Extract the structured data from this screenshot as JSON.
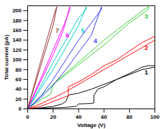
{
  "chart_data": {
    "type": "line",
    "x_label": "Voltage (V)",
    "y_label": "Total current (pA)",
    "xlim": [
      0,
      100
    ],
    "xticks": [
      0,
      20,
      40,
      60,
      80,
      100
    ],
    "ylim": [
      0,
      210
    ],
    "yticks": [
      0,
      20,
      40,
      60,
      80,
      100,
      120,
      140,
      160,
      180,
      200
    ],
    "grid": false,
    "series": [
      {
        "name": "1",
        "color": "#000000",
        "line_style": "solid",
        "x": [
          0,
          10,
          20,
          30,
          38,
          40,
          50,
          52,
          52,
          55,
          60,
          70,
          80,
          90,
          95,
          100,
          100,
          90,
          80,
          70,
          60,
          50,
          40,
          32,
          30,
          27,
          20,
          10,
          0
        ],
        "values": [
          0,
          1,
          2,
          3,
          5,
          10,
          11,
          12,
          27,
          40,
          45,
          60,
          72,
          85,
          88,
          88,
          85,
          80,
          70,
          60,
          50,
          40,
          32,
          28,
          15,
          10,
          5,
          2,
          0
        ]
      },
      {
        "name": "2",
        "color": "#ff0000",
        "line_style": "solid",
        "x": [
          0,
          10,
          20,
          25,
          30,
          32,
          32,
          40,
          50,
          60,
          70,
          80,
          90,
          100,
          100,
          90,
          80,
          70,
          60,
          50,
          40,
          30,
          20,
          10,
          0
        ],
        "values": [
          0,
          5,
          15,
          20,
          25,
          27,
          45,
          55,
          70,
          88,
          100,
          118,
          135,
          148,
          140,
          125,
          110,
          95,
          80,
          65,
          50,
          35,
          22,
          10,
          0
        ]
      },
      {
        "name": "3",
        "color": "#33cc33",
        "line_style": "solid",
        "x": [
          0,
          10,
          18,
          20,
          40,
          60,
          80,
          90,
          95,
          95,
          80,
          60,
          40,
          20,
          10,
          0
        ],
        "values": [
          0,
          18,
          30,
          50,
          95,
          140,
          180,
          200,
          208,
          203,
          175,
          130,
          90,
          50,
          25,
          0
        ]
      },
      {
        "name": "4",
        "color": "#3333ff",
        "line_style": "solid",
        "x": [
          0,
          10,
          20,
          30,
          40,
          50,
          58,
          58,
          50,
          40,
          30,
          20,
          10,
          0
        ],
        "values": [
          0,
          22,
          48,
          80,
          115,
          150,
          208,
          203,
          175,
          140,
          100,
          60,
          25,
          0
        ]
      },
      {
        "name": "5",
        "color": "#00cccc",
        "line_style": "solid",
        "x": [
          0,
          10,
          20,
          30,
          40,
          46,
          46,
          40,
          30,
          20,
          10,
          0
        ],
        "values": [
          0,
          40,
          80,
          125,
          170,
          208,
          203,
          185,
          140,
          95,
          45,
          0
        ]
      },
      {
        "name": "6",
        "color": "#ff00ff",
        "line_style": "solid",
        "x": [
          0,
          10,
          20,
          28,
          33,
          33,
          30,
          20,
          10,
          0
        ],
        "values": [
          0,
          55,
          110,
          160,
          208,
          203,
          180,
          120,
          60,
          0
        ]
      },
      {
        "name": "7",
        "color": "#993333",
        "line_style": "solid",
        "x": [
          0,
          10,
          20,
          23,
          22,
          20,
          10,
          0
        ],
        "values": [
          0,
          85,
          170,
          208,
          203,
          185,
          95,
          0
        ]
      }
    ]
  }
}
